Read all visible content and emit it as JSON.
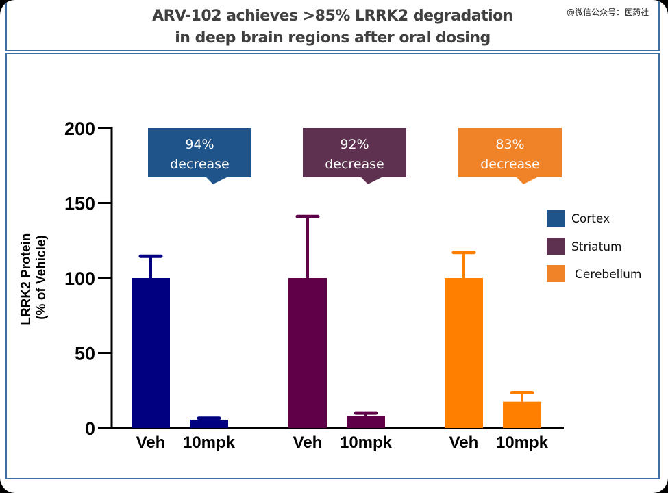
{
  "title_lines": [
    "ARV-102 achieves >85% LRRK2 degradation",
    "in deep brain regions after oral dosing"
  ],
  "watermark": "@微信公众号：医药社",
  "chart_data": {
    "type": "bar",
    "title": "ARV-102 achieves >85% LRRK2 degradation in deep brain regions after oral dosing",
    "ylabel_lines": [
      "LRRK2 Protein",
      "(% of Vehicle)"
    ],
    "xlabel": "",
    "ylim": [
      0,
      200
    ],
    "yticks": [
      0,
      50,
      100,
      150,
      200
    ],
    "grid": false,
    "legend_position": "right",
    "groups": [
      {
        "name": "Cortex",
        "color": "#000080",
        "legend_color": "#1f548a",
        "categories": [
          "Veh",
          "10mpk"
        ],
        "values": [
          100,
          5.5
        ],
        "error_upper": [
          114.5,
          6.5
        ],
        "callout": {
          "line1": "94%",
          "line2": "decrease",
          "color": "#1f548a"
        }
      },
      {
        "name": "Striatum",
        "color": "#5f0049",
        "legend_color": "#5e3150",
        "categories": [
          "Veh",
          "10mpk"
        ],
        "values": [
          100,
          8
        ],
        "error_upper": [
          141,
          10
        ],
        "callout": {
          "line1": "92%",
          "line2": "decrease",
          "color": "#5e3150"
        }
      },
      {
        "name": "Cerebellum",
        "color": "#ff8000",
        "legend_color": "#f08228",
        "categories": [
          "Veh",
          "10mpk"
        ],
        "values": [
          100,
          17.5
        ],
        "error_upper": [
          117,
          23.5
        ],
        "callout": {
          "line1": "83%",
          "line2": "decrease",
          "color": "#f08228"
        }
      }
    ]
  }
}
